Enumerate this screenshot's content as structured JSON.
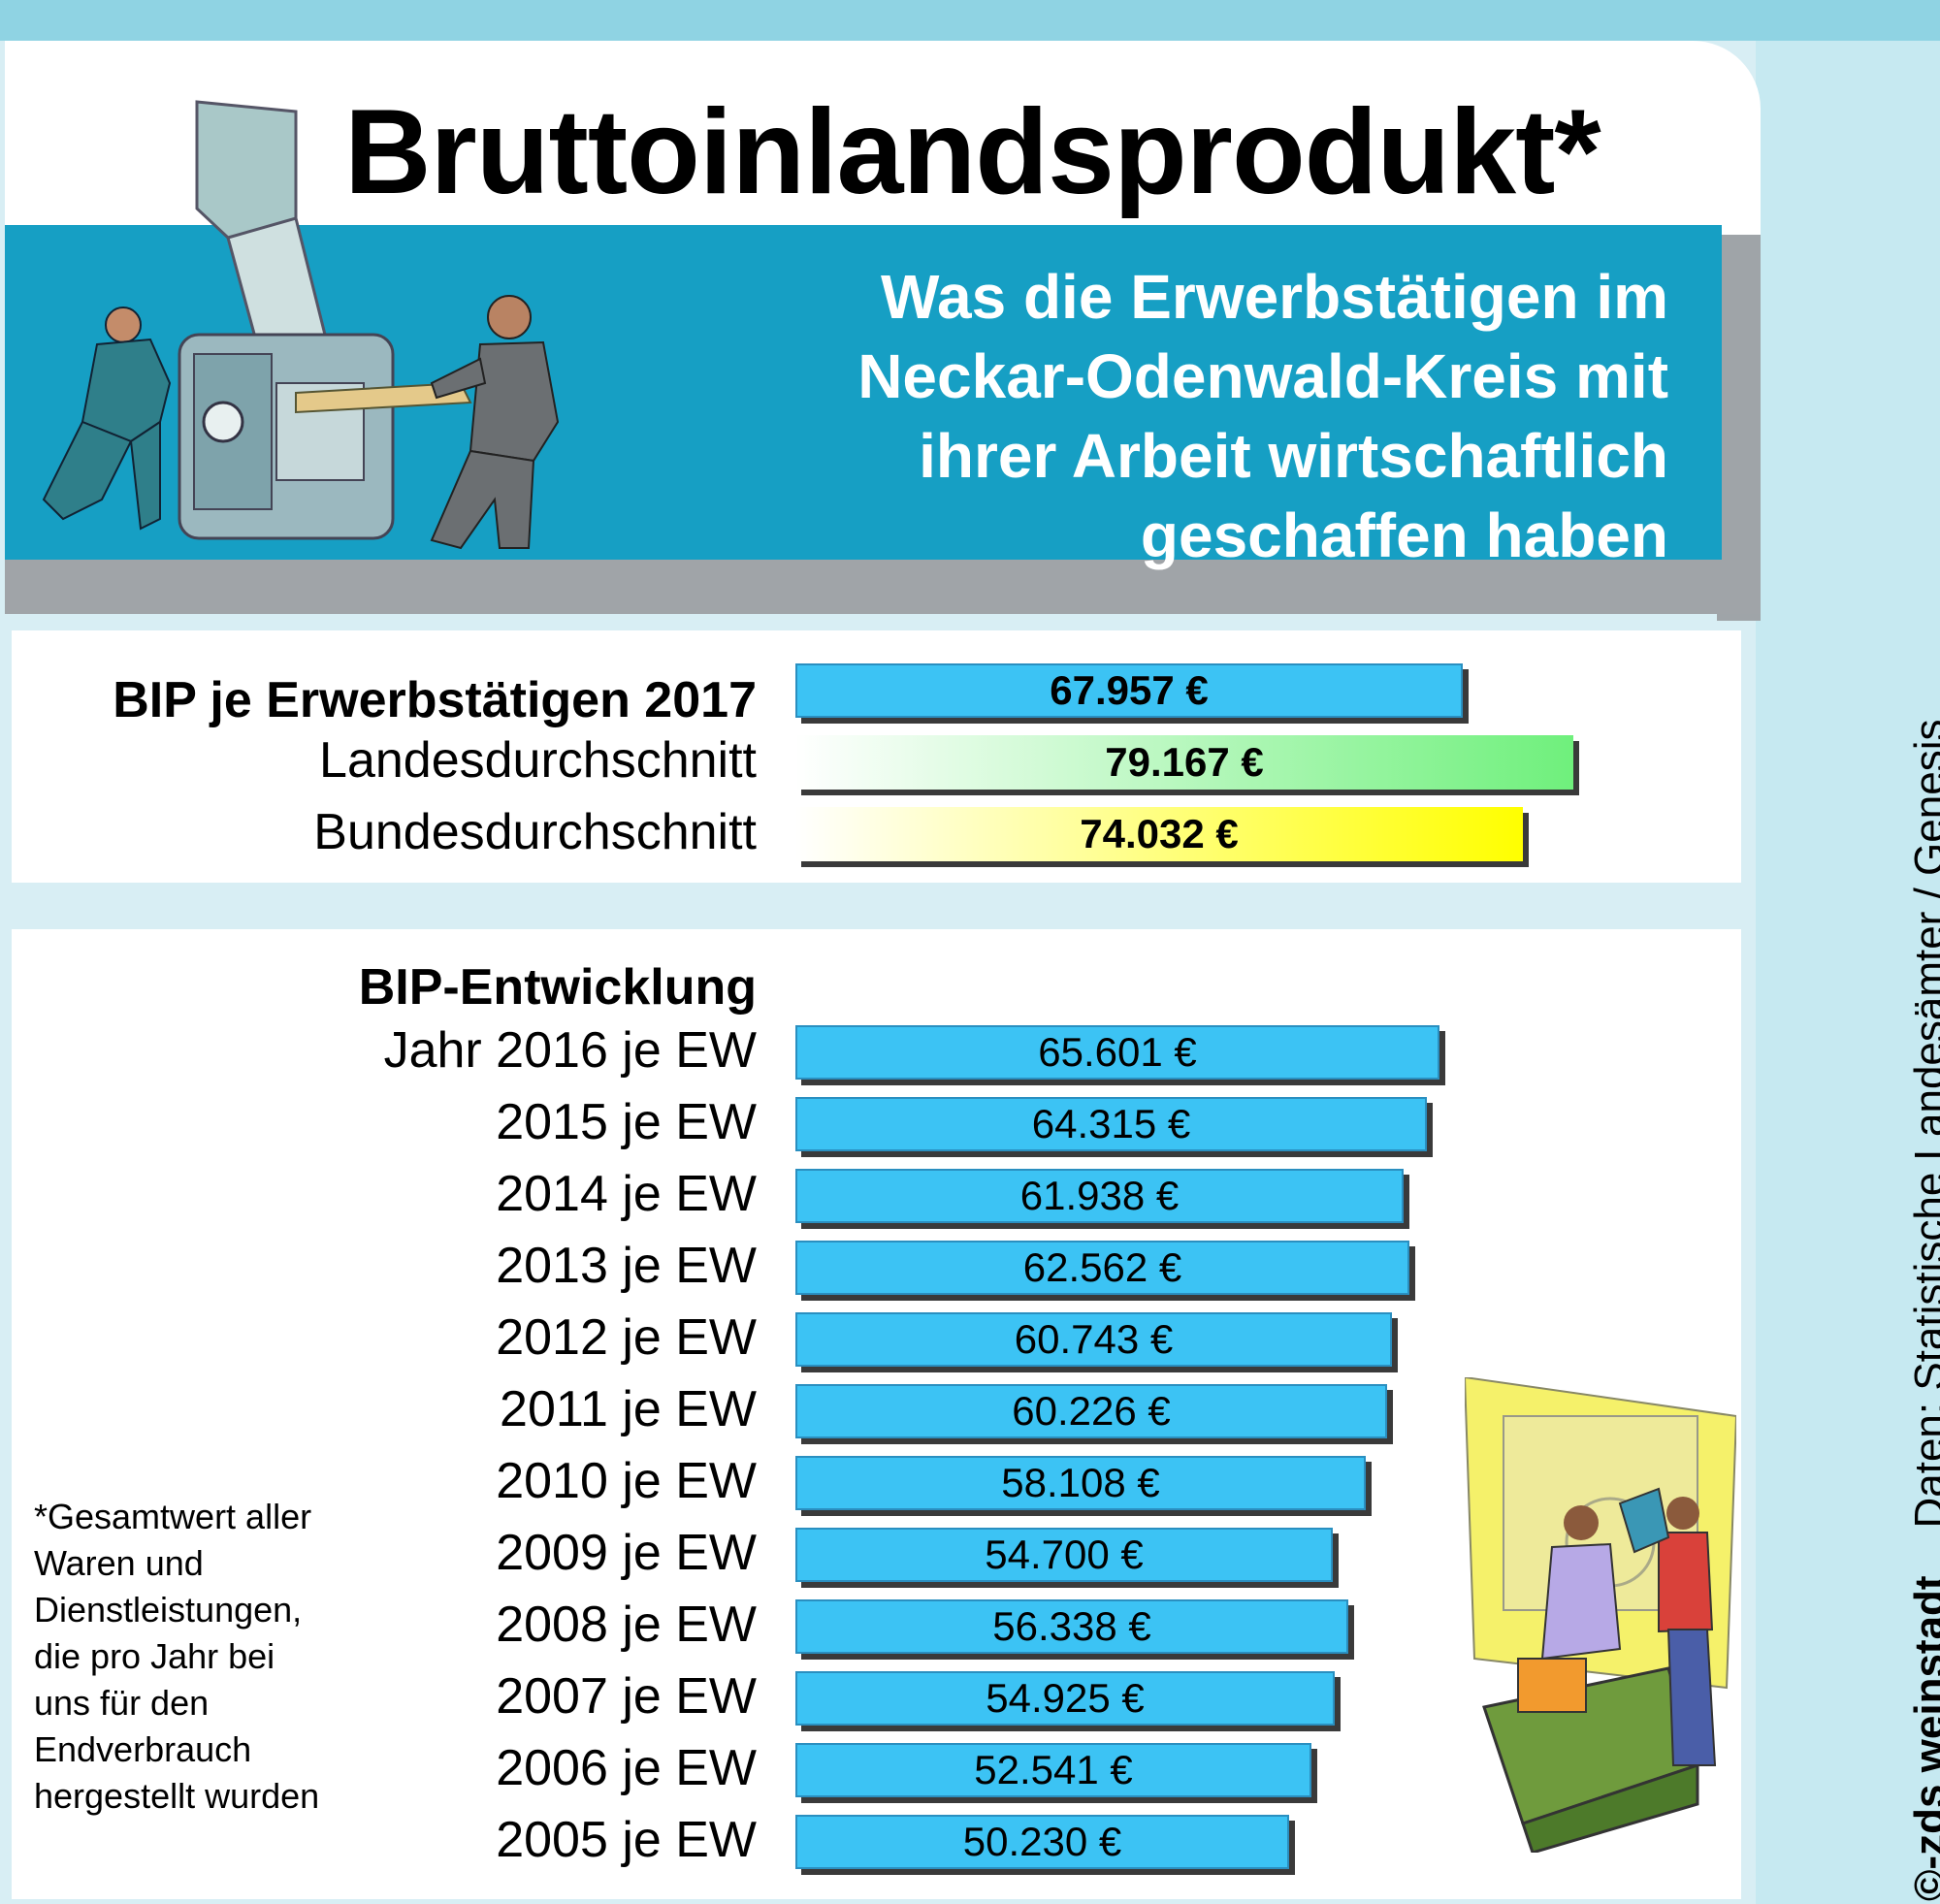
{
  "title": "Bruttoinlandsprodukt*",
  "subtitle": [
    "Was die Erwerbstätigen im",
    "Neckar-Odenwald-Kreis mit",
    "ihrer Arbeit wirtschaftlich",
    "geschaffen haben"
  ],
  "comparison": {
    "heading": "BIP je Erwerbstätigen 2017",
    "rows": [
      {
        "label": "",
        "value": 67957,
        "value_label": "67.957 €",
        "color": "#3cc3f4"
      },
      {
        "label": "Landesdurchschnitt",
        "value": 79167,
        "value_label": "79.167 €",
        "color": "#6ff07c"
      },
      {
        "label": "Bundesdurchschnitt",
        "value": 74032,
        "value_label": "74.032 €",
        "color": "#ffff00"
      }
    ]
  },
  "development": {
    "heading": "BIP-Entwicklung",
    "rows": [
      {
        "label": "Jahr 2016 je EW",
        "value": 65601,
        "value_label": "65.601 €"
      },
      {
        "label": "2015 je EW",
        "value": 64315,
        "value_label": "64.315 €"
      },
      {
        "label": "2014 je EW",
        "value": 61938,
        "value_label": "61.938 €"
      },
      {
        "label": "2013 je EW",
        "value": 62562,
        "value_label": "62.562 €"
      },
      {
        "label": "2012 je EW",
        "value": 60743,
        "value_label": "60.743 €"
      },
      {
        "label": "2011 je EW",
        "value": 60226,
        "value_label": "60.226 €"
      },
      {
        "label": "2010 je EW",
        "value": 58108,
        "value_label": "58.108 €"
      },
      {
        "label": "2009 je EW",
        "value": 54700,
        "value_label": "54.700 €"
      },
      {
        "label": "2008 je EW",
        "value": 56338,
        "value_label": "56.338 €"
      },
      {
        "label": "2007 je EW",
        "value": 54925,
        "value_label": "54.925 €"
      },
      {
        "label": "2006 je EW",
        "value": 52541,
        "value_label": "52.541 €"
      },
      {
        "label": "2005 je EW",
        "value": 50230,
        "value_label": "50.230 €"
      }
    ]
  },
  "footnote": [
    "*Gesamtwert aller",
    "Waren und",
    "Dienstleistungen,",
    "die pro Jahr bei",
    "uns für den",
    "Endverbrauch",
    "hergestellt wurden"
  ],
  "source": {
    "copyright": "©-zds weinstadt",
    "data": "Daten: Statistische Landesämter / Genesis"
  },
  "colors": {
    "bar_blue": "#3cc3f4",
    "header_blue": "#169fc4",
    "background": "#d8eef4"
  },
  "chart_data": [
    {
      "type": "bar",
      "orientation": "horizontal",
      "title": "BIP je Erwerbstätigen 2017",
      "categories": [
        "",
        "Landesdurchschnitt",
        "Bundesdurchschnitt"
      ],
      "values": [
        67957,
        79167,
        74032
      ],
      "unit": "€"
    },
    {
      "type": "bar",
      "orientation": "horizontal",
      "title": "BIP-Entwicklung",
      "categories": [
        "Jahr 2016 je EW",
        "2015 je EW",
        "2014 je EW",
        "2013 je EW",
        "2012 je EW",
        "2011 je EW",
        "2010 je EW",
        "2009 je EW",
        "2008 je EW",
        "2007 je EW",
        "2006 je EW",
        "2005 je EW"
      ],
      "values": [
        65601,
        64315,
        61938,
        62562,
        60743,
        60226,
        58108,
        54700,
        56338,
        54925,
        52541,
        50230
      ],
      "unit": "€"
    }
  ]
}
